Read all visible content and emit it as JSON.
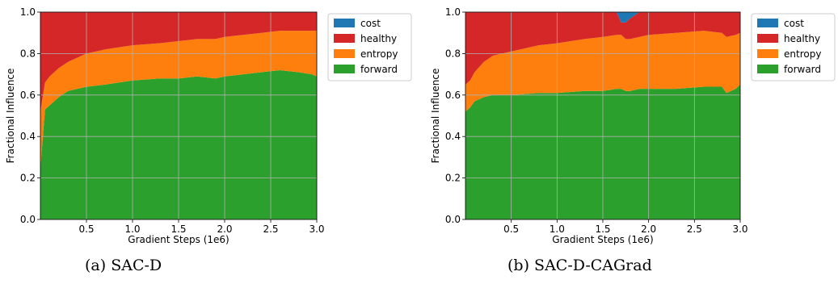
{
  "figure": {
    "captions": [
      {
        "prefix": "(a)",
        "label": "SAC-D"
      },
      {
        "prefix": "(b)",
        "label": "SAC-D-CAGrad"
      }
    ]
  },
  "chart_data": [
    {
      "type": "area",
      "stacked": true,
      "xlabel": "Gradient Steps (1e6)",
      "ylabel": "Fractional Influence",
      "xlim": [
        0,
        3.0
      ],
      "ylim": [
        0,
        1.0
      ],
      "xticks": [
        "0.5",
        "1.0",
        "1.5",
        "2.0",
        "2.5",
        "3.0"
      ],
      "yticks": [
        "0.0",
        "0.2",
        "0.4",
        "0.6",
        "0.8",
        "1.0"
      ],
      "grid": true,
      "legend_position": "right",
      "x": [
        0,
        0.05,
        0.1,
        0.2,
        0.3,
        0.5,
        0.7,
        1.0,
        1.3,
        1.5,
        1.7,
        1.9,
        2.0,
        2.2,
        2.4,
        2.6,
        2.8,
        2.95,
        3.0
      ],
      "series": [
        {
          "name": "forward",
          "color": "#2ca02c",
          "values": [
            0.25,
            0.53,
            0.55,
            0.59,
            0.62,
            0.64,
            0.65,
            0.67,
            0.68,
            0.68,
            0.69,
            0.68,
            0.69,
            0.7,
            0.71,
            0.72,
            0.71,
            0.7,
            0.69
          ]
        },
        {
          "name": "entropy",
          "color": "#ff7f0e",
          "values": [
            0.27,
            0.13,
            0.14,
            0.14,
            0.14,
            0.16,
            0.17,
            0.17,
            0.17,
            0.18,
            0.18,
            0.19,
            0.19,
            0.19,
            0.19,
            0.19,
            0.2,
            0.21,
            0.22
          ]
        },
        {
          "name": "healthy",
          "color": "#d62728",
          "values": [
            0.48,
            0.34,
            0.31,
            0.27,
            0.24,
            0.2,
            0.18,
            0.16,
            0.15,
            0.14,
            0.13,
            0.13,
            0.12,
            0.11,
            0.1,
            0.09,
            0.09,
            0.09,
            0.09
          ]
        },
        {
          "name": "cost",
          "color": "#1f77b4",
          "values": [
            0,
            0,
            0,
            0,
            0,
            0,
            0,
            0,
            0,
            0,
            0,
            0,
            0,
            0,
            0,
            0,
            0,
            0,
            0
          ]
        }
      ]
    },
    {
      "type": "area",
      "stacked": true,
      "xlabel": "Gradient Steps (1e6)",
      "ylabel": "Fractional Influence",
      "xlim": [
        0,
        3.0
      ],
      "ylim": [
        0,
        1.0
      ],
      "xticks": [
        "0.5",
        "1.0",
        "1.5",
        "2.0",
        "2.5",
        "3.0"
      ],
      "yticks": [
        "0.0",
        "0.2",
        "0.4",
        "0.6",
        "0.8",
        "1.0"
      ],
      "grid": true,
      "legend_position": "right",
      "x": [
        0,
        0.05,
        0.1,
        0.2,
        0.3,
        0.5,
        0.8,
        1.0,
        1.3,
        1.5,
        1.65,
        1.7,
        1.75,
        1.8,
        1.9,
        2.0,
        2.3,
        2.6,
        2.8,
        2.85,
        2.95,
        3.0
      ],
      "series": [
        {
          "name": "forward",
          "color": "#2ca02c",
          "values": [
            0.52,
            0.54,
            0.57,
            0.59,
            0.6,
            0.6,
            0.61,
            0.61,
            0.62,
            0.62,
            0.63,
            0.63,
            0.62,
            0.62,
            0.63,
            0.63,
            0.63,
            0.64,
            0.64,
            0.61,
            0.63,
            0.65
          ]
        },
        {
          "name": "entropy",
          "color": "#ff7f0e",
          "values": [
            0.13,
            0.13,
            0.14,
            0.17,
            0.19,
            0.21,
            0.23,
            0.24,
            0.25,
            0.26,
            0.26,
            0.26,
            0.25,
            0.25,
            0.25,
            0.26,
            0.27,
            0.27,
            0.26,
            0.27,
            0.26,
            0.25
          ]
        },
        {
          "name": "healthy",
          "color": "#d62728",
          "values": [
            0.35,
            0.33,
            0.29,
            0.24,
            0.21,
            0.19,
            0.16,
            0.15,
            0.13,
            0.12,
            0.11,
            0.06,
            0.08,
            0.1,
            0.12,
            0.11,
            0.1,
            0.09,
            0.1,
            0.12,
            0.11,
            0.1
          ]
        },
        {
          "name": "cost",
          "color": "#1f77b4",
          "values": [
            0,
            0,
            0,
            0,
            0,
            0,
            0,
            0,
            0,
            0,
            0,
            0.05,
            0.05,
            0.03,
            0,
            0,
            0,
            0,
            0,
            0,
            0,
            0
          ]
        }
      ]
    }
  ]
}
